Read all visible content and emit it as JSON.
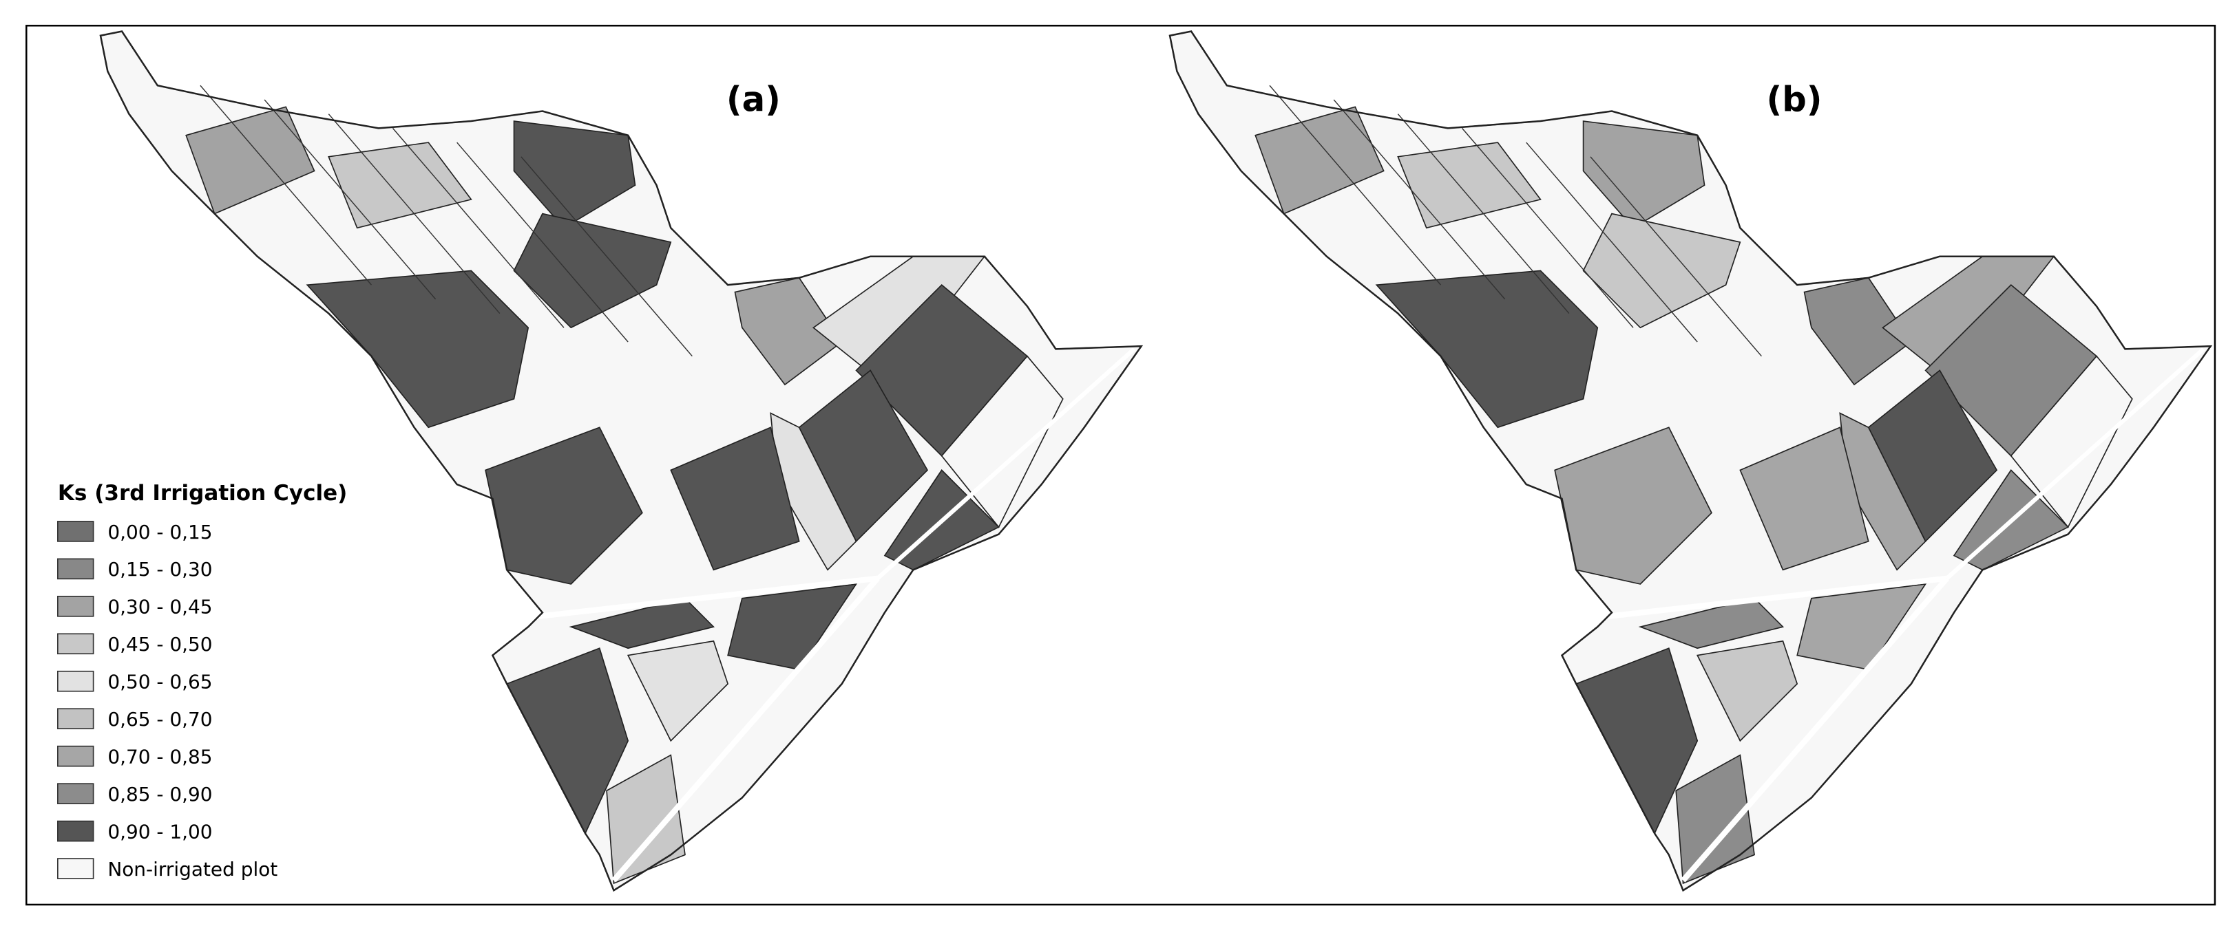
{
  "panels": [
    {
      "label": "(a)"
    },
    {
      "label": "(b)"
    }
  ],
  "legend": {
    "title": "Ks (3rd Irrigation Cycle)",
    "items": [
      {
        "label": "0,00 - 0,15",
        "color": "#707070"
      },
      {
        "label": "0,15 - 0,30",
        "color": "#888888"
      },
      {
        "label": "0,30 - 0,45",
        "color": "#a3a3a3"
      },
      {
        "label": "0,45 - 0,50",
        "color": "#c8c8c8"
      },
      {
        "label": "0,50 - 0,65",
        "color": "#e2e2e2"
      },
      {
        "label": "0,65 - 0,70",
        "color": "#c2c2c2"
      },
      {
        "label": "0,70 - 0,85",
        "color": "#a6a6a6"
      },
      {
        "label": "0,85 - 0,90",
        "color": "#8c8c8c"
      },
      {
        "label": "0,90 - 1,00",
        "color": "#555555"
      },
      {
        "label": "Non-irrigated plot",
        "color": "#f7f7f7"
      }
    ]
  }
}
